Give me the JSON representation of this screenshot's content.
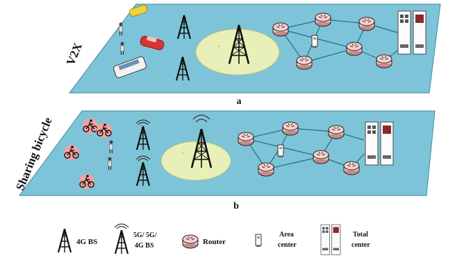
{
  "panels": [
    {
      "name": "V2X",
      "letter": "a"
    },
    {
      "name": "Sharing bicycle",
      "letter": "b"
    }
  ],
  "legend": {
    "bs4g": "4G BS",
    "bs5g_line1": "5G/ 5G/",
    "bs5g_line2": "4G BS",
    "router": "Router",
    "area_line1": "Area",
    "area_line2": "center",
    "total_line1": "Total",
    "total_line2": "center"
  },
  "colors": {
    "plane": "#7ec4d8",
    "coverage": "#e8efb8",
    "link": "#1f6f87",
    "bike": "#f2a0a0",
    "router": "#f7d0d0"
  }
}
